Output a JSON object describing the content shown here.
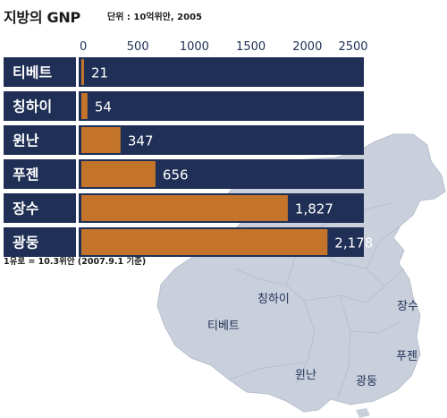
{
  "title": "지방의 GNP",
  "subtitle": "단위 : 10억위안, 2005",
  "footnote": "1유로 = 10.3위안 (2007.9.1 기준)",
  "colors": {
    "bar_background": "#1f2f55",
    "bar_value": "#c4742a",
    "map_fill": "#c9d0dc",
    "label_text": "#ffffff"
  },
  "chart_data": {
    "type": "bar",
    "orientation": "horizontal",
    "title": "지방의 GNP",
    "subtitle": "단위 : 10억위안, 2005",
    "categories": [
      "티베트",
      "칭하이",
      "윈난",
      "푸젠",
      "장수",
      "광둥"
    ],
    "values": [
      21,
      54,
      347,
      656,
      1827,
      2178
    ],
    "value_labels": [
      "21",
      "54",
      "347",
      "656",
      "1,827",
      "2,178"
    ],
    "xticks": [
      "0",
      "500",
      "1000",
      "1500",
      "2000",
      "2500"
    ],
    "xlim": [
      0,
      2500
    ],
    "xlabel": "",
    "ylabel": "",
    "grid": false,
    "legend": "none"
  },
  "map": {
    "labels": [
      {
        "id": "qinghai",
        "text": "칭하이"
      },
      {
        "id": "tibet",
        "text": "티베트"
      },
      {
        "id": "jiangsu",
        "text": "장수"
      },
      {
        "id": "fujian",
        "text": "푸젠"
      },
      {
        "id": "yunnan",
        "text": "윈난"
      },
      {
        "id": "guangdong",
        "text": "광둥"
      }
    ]
  }
}
